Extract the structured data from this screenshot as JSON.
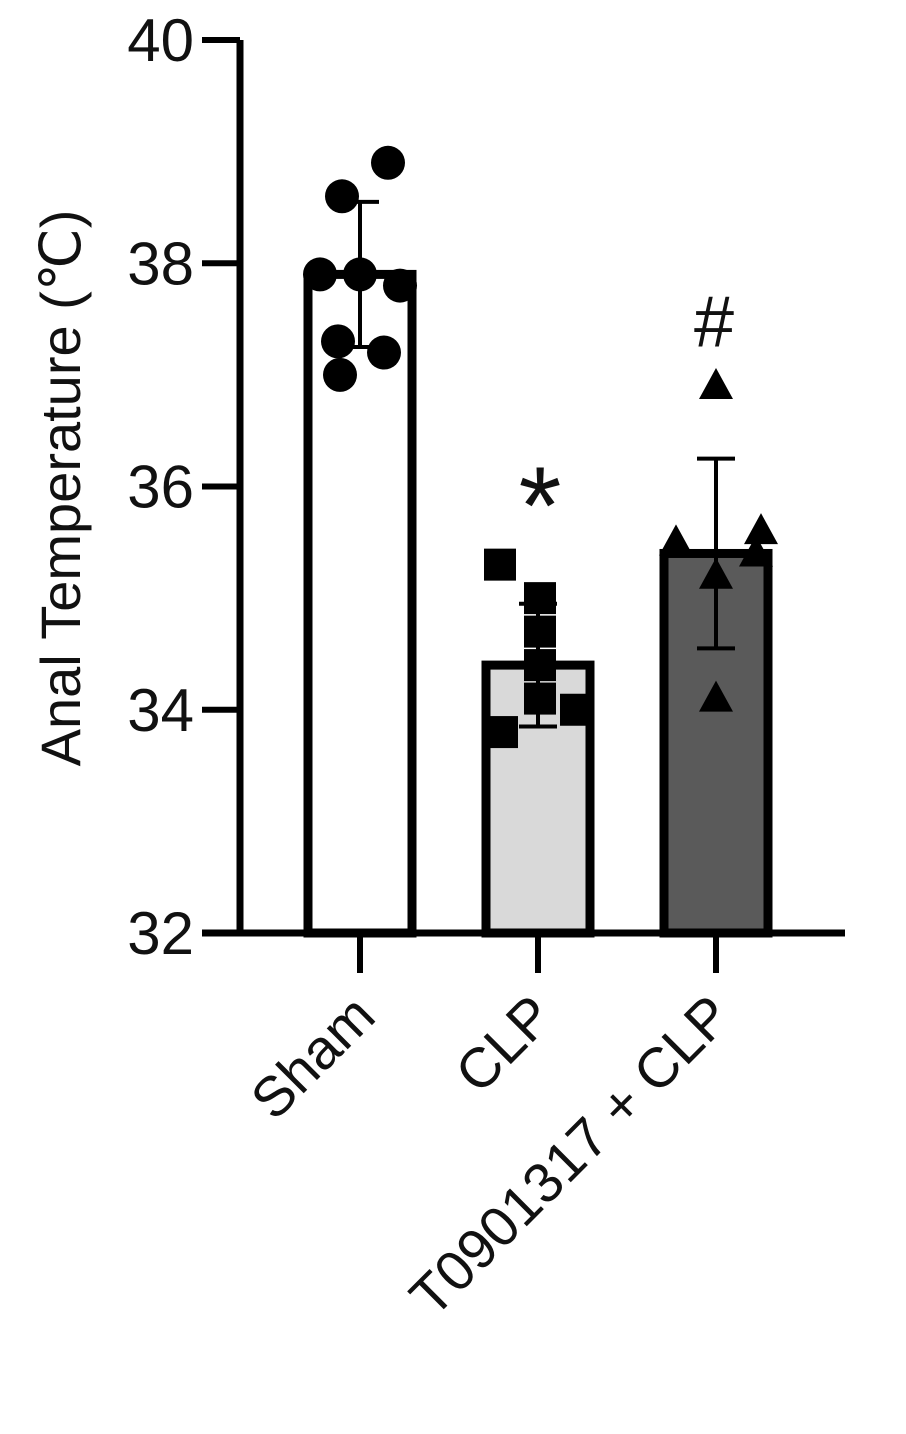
{
  "chart_data": {
    "type": "bar",
    "title": "",
    "ylabel": "Anal Temperature (℃)",
    "xlabel": "",
    "ylim": [
      32,
      40
    ],
    "yticks": [
      "32",
      "34",
      "36",
      "38",
      "40"
    ],
    "grid": false,
    "categories": [
      "Sham",
      "CLP",
      "T0901317 + CLP"
    ],
    "values": [
      37.9,
      34.4,
      35.4
    ],
    "error": [
      0.65,
      0.55,
      0.85
    ],
    "bar_colors": [
      "#ffffff",
      "#d9d9d9",
      "#5a5a5a"
    ],
    "markers": [
      "circle",
      "square",
      "triangle"
    ],
    "annotations": [
      "",
      "*",
      "#"
    ],
    "points": [
      [
        38.9,
        38.6,
        37.9,
        37.9,
        37.8,
        37.3,
        37.2,
        37.0
      ],
      [
        35.3,
        35.0,
        34.7,
        34.4,
        34.1,
        34.0,
        33.8
      ],
      [
        36.9,
        35.6,
        35.5,
        35.4,
        35.2,
        34.1
      ]
    ]
  }
}
